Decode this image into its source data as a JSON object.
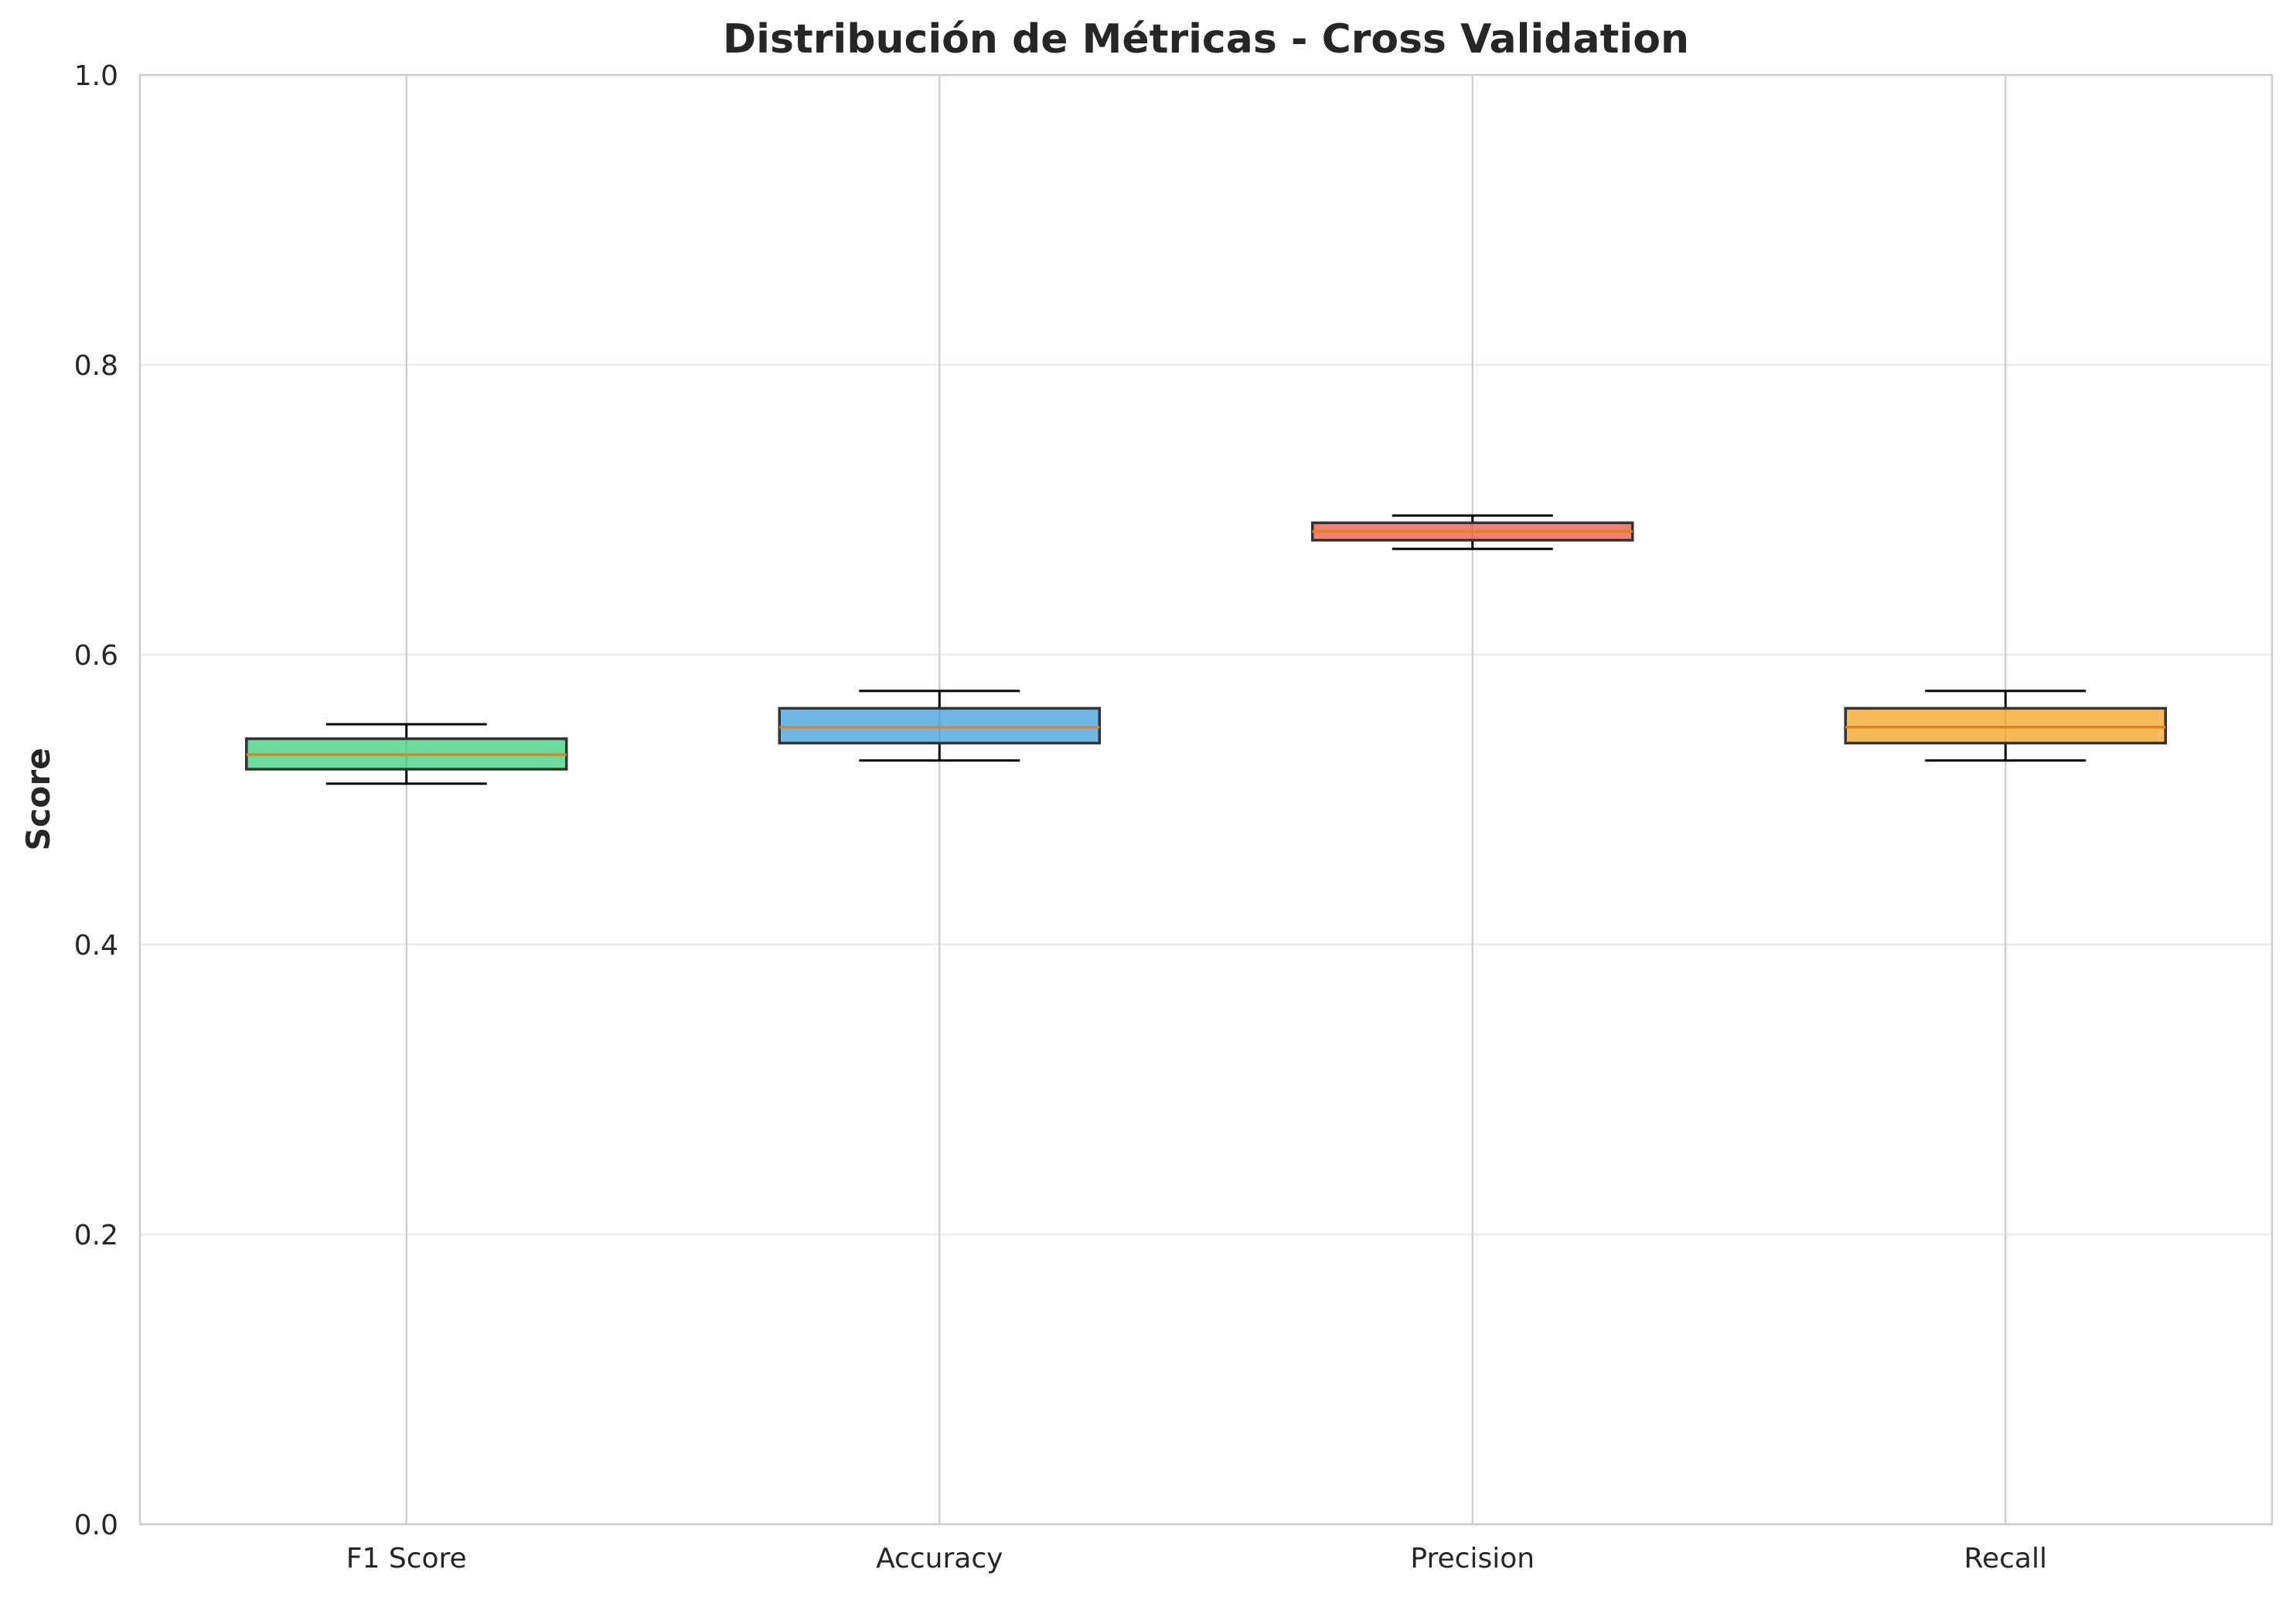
{
  "chart_data": {
    "type": "box",
    "title": "Distribución de Métricas - Cross Validation",
    "xlabel": "",
    "ylabel": "Score",
    "ylim": [
      0,
      1
    ],
    "yticks": [
      "0.0",
      "0.2",
      "0.4",
      "0.6",
      "0.8",
      "1.0"
    ],
    "ytick_values": [
      0.0,
      0.2,
      0.4,
      0.6,
      0.8,
      1.0
    ],
    "grid": true,
    "categories": [
      "F1 Score",
      "Accuracy",
      "Precision",
      "Recall"
    ],
    "boxes": [
      {
        "category": "F1 Score",
        "whislo": 0.511,
        "q1": 0.521,
        "median": 0.531,
        "q3": 0.542,
        "whishi": 0.552,
        "color": "#2ecc71"
      },
      {
        "category": "Accuracy",
        "whislo": 0.527,
        "q1": 0.539,
        "median": 0.55,
        "q3": 0.563,
        "whishi": 0.575,
        "color": "#3498db"
      },
      {
        "category": "Precision",
        "whislo": 0.673,
        "q1": 0.679,
        "median": 0.685,
        "q3": 0.691,
        "whishi": 0.696,
        "color": "#e74c3c"
      },
      {
        "category": "Recall",
        "whislo": 0.527,
        "q1": 0.539,
        "median": 0.55,
        "q3": 0.563,
        "whishi": 0.575,
        "color": "#f39c12"
      }
    ],
    "colors": {
      "median": "#e67e22",
      "box_edge": "#333333",
      "whisker": "#000000",
      "grid": "#ebebeb",
      "axis_spine": "#cccccc",
      "text": "#262626"
    }
  }
}
